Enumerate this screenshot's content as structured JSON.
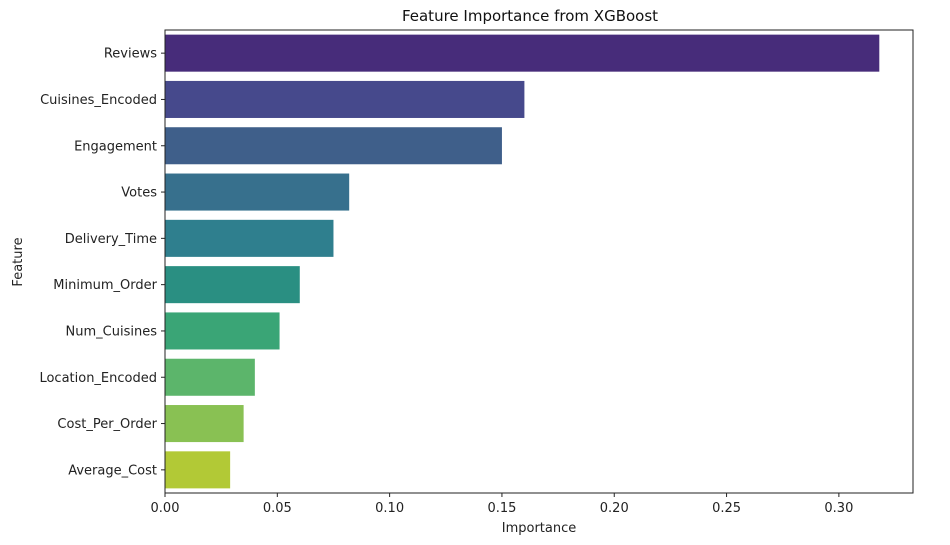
{
  "chart_data": {
    "type": "bar",
    "orientation": "horizontal",
    "title": "Feature Importance from XGBoost",
    "xlabel": "Importance",
    "ylabel": "Feature",
    "categories": [
      "Reviews",
      "Cuisines_Encoded",
      "Engagement",
      "Votes",
      "Delivery_Time",
      "Minimum_Order",
      "Num_Cuisines",
      "Location_Encoded",
      "Cost_Per_Order",
      "Average_Cost"
    ],
    "values": [
      0.318,
      0.16,
      0.15,
      0.082,
      0.075,
      0.06,
      0.051,
      0.04,
      0.035,
      0.029
    ],
    "colors": [
      "#472c7a",
      "#46498c",
      "#3f5f8a",
      "#37708d",
      "#2f7f8e",
      "#2a8f82",
      "#3aa576",
      "#5cb56b",
      "#89c153",
      "#b2c936"
    ],
    "xlim": [
      0,
      0.333
    ],
    "xticks": [
      "0.00",
      "0.05",
      "0.10",
      "0.15",
      "0.20",
      "0.25",
      "0.30"
    ],
    "grid": false,
    "legend": "none"
  }
}
